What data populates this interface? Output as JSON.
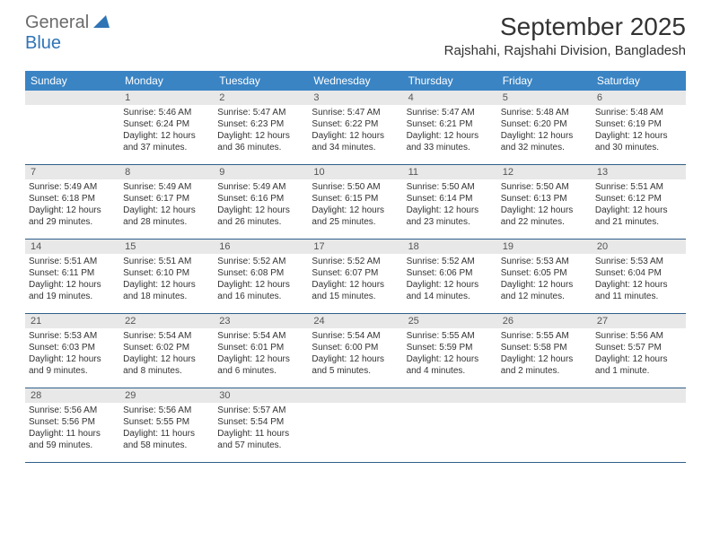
{
  "logo": {
    "word1": "General",
    "word2": "Blue"
  },
  "title": "September 2025",
  "location": "Rajshahi, Rajshahi Division, Bangladesh",
  "colors": {
    "header_bg": "#3a84c4",
    "header_text": "#ffffff",
    "daynum_bg": "#e8e8e8",
    "row_border": "#2f5f8a",
    "logo_gray": "#6b6b6b",
    "logo_blue": "#2f74b5"
  },
  "day_names": [
    "Sunday",
    "Monday",
    "Tuesday",
    "Wednesday",
    "Thursday",
    "Friday",
    "Saturday"
  ],
  "weeks": [
    [
      {
        "n": "",
        "sr": "",
        "ss": "",
        "dl": ""
      },
      {
        "n": "1",
        "sr": "Sunrise: 5:46 AM",
        "ss": "Sunset: 6:24 PM",
        "dl": "Daylight: 12 hours and 37 minutes."
      },
      {
        "n": "2",
        "sr": "Sunrise: 5:47 AM",
        "ss": "Sunset: 6:23 PM",
        "dl": "Daylight: 12 hours and 36 minutes."
      },
      {
        "n": "3",
        "sr": "Sunrise: 5:47 AM",
        "ss": "Sunset: 6:22 PM",
        "dl": "Daylight: 12 hours and 34 minutes."
      },
      {
        "n": "4",
        "sr": "Sunrise: 5:47 AM",
        "ss": "Sunset: 6:21 PM",
        "dl": "Daylight: 12 hours and 33 minutes."
      },
      {
        "n": "5",
        "sr": "Sunrise: 5:48 AM",
        "ss": "Sunset: 6:20 PM",
        "dl": "Daylight: 12 hours and 32 minutes."
      },
      {
        "n": "6",
        "sr": "Sunrise: 5:48 AM",
        "ss": "Sunset: 6:19 PM",
        "dl": "Daylight: 12 hours and 30 minutes."
      }
    ],
    [
      {
        "n": "7",
        "sr": "Sunrise: 5:49 AM",
        "ss": "Sunset: 6:18 PM",
        "dl": "Daylight: 12 hours and 29 minutes."
      },
      {
        "n": "8",
        "sr": "Sunrise: 5:49 AM",
        "ss": "Sunset: 6:17 PM",
        "dl": "Daylight: 12 hours and 28 minutes."
      },
      {
        "n": "9",
        "sr": "Sunrise: 5:49 AM",
        "ss": "Sunset: 6:16 PM",
        "dl": "Daylight: 12 hours and 26 minutes."
      },
      {
        "n": "10",
        "sr": "Sunrise: 5:50 AM",
        "ss": "Sunset: 6:15 PM",
        "dl": "Daylight: 12 hours and 25 minutes."
      },
      {
        "n": "11",
        "sr": "Sunrise: 5:50 AM",
        "ss": "Sunset: 6:14 PM",
        "dl": "Daylight: 12 hours and 23 minutes."
      },
      {
        "n": "12",
        "sr": "Sunrise: 5:50 AM",
        "ss": "Sunset: 6:13 PM",
        "dl": "Daylight: 12 hours and 22 minutes."
      },
      {
        "n": "13",
        "sr": "Sunrise: 5:51 AM",
        "ss": "Sunset: 6:12 PM",
        "dl": "Daylight: 12 hours and 21 minutes."
      }
    ],
    [
      {
        "n": "14",
        "sr": "Sunrise: 5:51 AM",
        "ss": "Sunset: 6:11 PM",
        "dl": "Daylight: 12 hours and 19 minutes."
      },
      {
        "n": "15",
        "sr": "Sunrise: 5:51 AM",
        "ss": "Sunset: 6:10 PM",
        "dl": "Daylight: 12 hours and 18 minutes."
      },
      {
        "n": "16",
        "sr": "Sunrise: 5:52 AM",
        "ss": "Sunset: 6:08 PM",
        "dl": "Daylight: 12 hours and 16 minutes."
      },
      {
        "n": "17",
        "sr": "Sunrise: 5:52 AM",
        "ss": "Sunset: 6:07 PM",
        "dl": "Daylight: 12 hours and 15 minutes."
      },
      {
        "n": "18",
        "sr": "Sunrise: 5:52 AM",
        "ss": "Sunset: 6:06 PM",
        "dl": "Daylight: 12 hours and 14 minutes."
      },
      {
        "n": "19",
        "sr": "Sunrise: 5:53 AM",
        "ss": "Sunset: 6:05 PM",
        "dl": "Daylight: 12 hours and 12 minutes."
      },
      {
        "n": "20",
        "sr": "Sunrise: 5:53 AM",
        "ss": "Sunset: 6:04 PM",
        "dl": "Daylight: 12 hours and 11 minutes."
      }
    ],
    [
      {
        "n": "21",
        "sr": "Sunrise: 5:53 AM",
        "ss": "Sunset: 6:03 PM",
        "dl": "Daylight: 12 hours and 9 minutes."
      },
      {
        "n": "22",
        "sr": "Sunrise: 5:54 AM",
        "ss": "Sunset: 6:02 PM",
        "dl": "Daylight: 12 hours and 8 minutes."
      },
      {
        "n": "23",
        "sr": "Sunrise: 5:54 AM",
        "ss": "Sunset: 6:01 PM",
        "dl": "Daylight: 12 hours and 6 minutes."
      },
      {
        "n": "24",
        "sr": "Sunrise: 5:54 AM",
        "ss": "Sunset: 6:00 PM",
        "dl": "Daylight: 12 hours and 5 minutes."
      },
      {
        "n": "25",
        "sr": "Sunrise: 5:55 AM",
        "ss": "Sunset: 5:59 PM",
        "dl": "Daylight: 12 hours and 4 minutes."
      },
      {
        "n": "26",
        "sr": "Sunrise: 5:55 AM",
        "ss": "Sunset: 5:58 PM",
        "dl": "Daylight: 12 hours and 2 minutes."
      },
      {
        "n": "27",
        "sr": "Sunrise: 5:56 AM",
        "ss": "Sunset: 5:57 PM",
        "dl": "Daylight: 12 hours and 1 minute."
      }
    ],
    [
      {
        "n": "28",
        "sr": "Sunrise: 5:56 AM",
        "ss": "Sunset: 5:56 PM",
        "dl": "Daylight: 11 hours and 59 minutes."
      },
      {
        "n": "29",
        "sr": "Sunrise: 5:56 AM",
        "ss": "Sunset: 5:55 PM",
        "dl": "Daylight: 11 hours and 58 minutes."
      },
      {
        "n": "30",
        "sr": "Sunrise: 5:57 AM",
        "ss": "Sunset: 5:54 PM",
        "dl": "Daylight: 11 hours and 57 minutes."
      },
      {
        "n": "",
        "sr": "",
        "ss": "",
        "dl": ""
      },
      {
        "n": "",
        "sr": "",
        "ss": "",
        "dl": ""
      },
      {
        "n": "",
        "sr": "",
        "ss": "",
        "dl": ""
      },
      {
        "n": "",
        "sr": "",
        "ss": "",
        "dl": ""
      }
    ]
  ]
}
